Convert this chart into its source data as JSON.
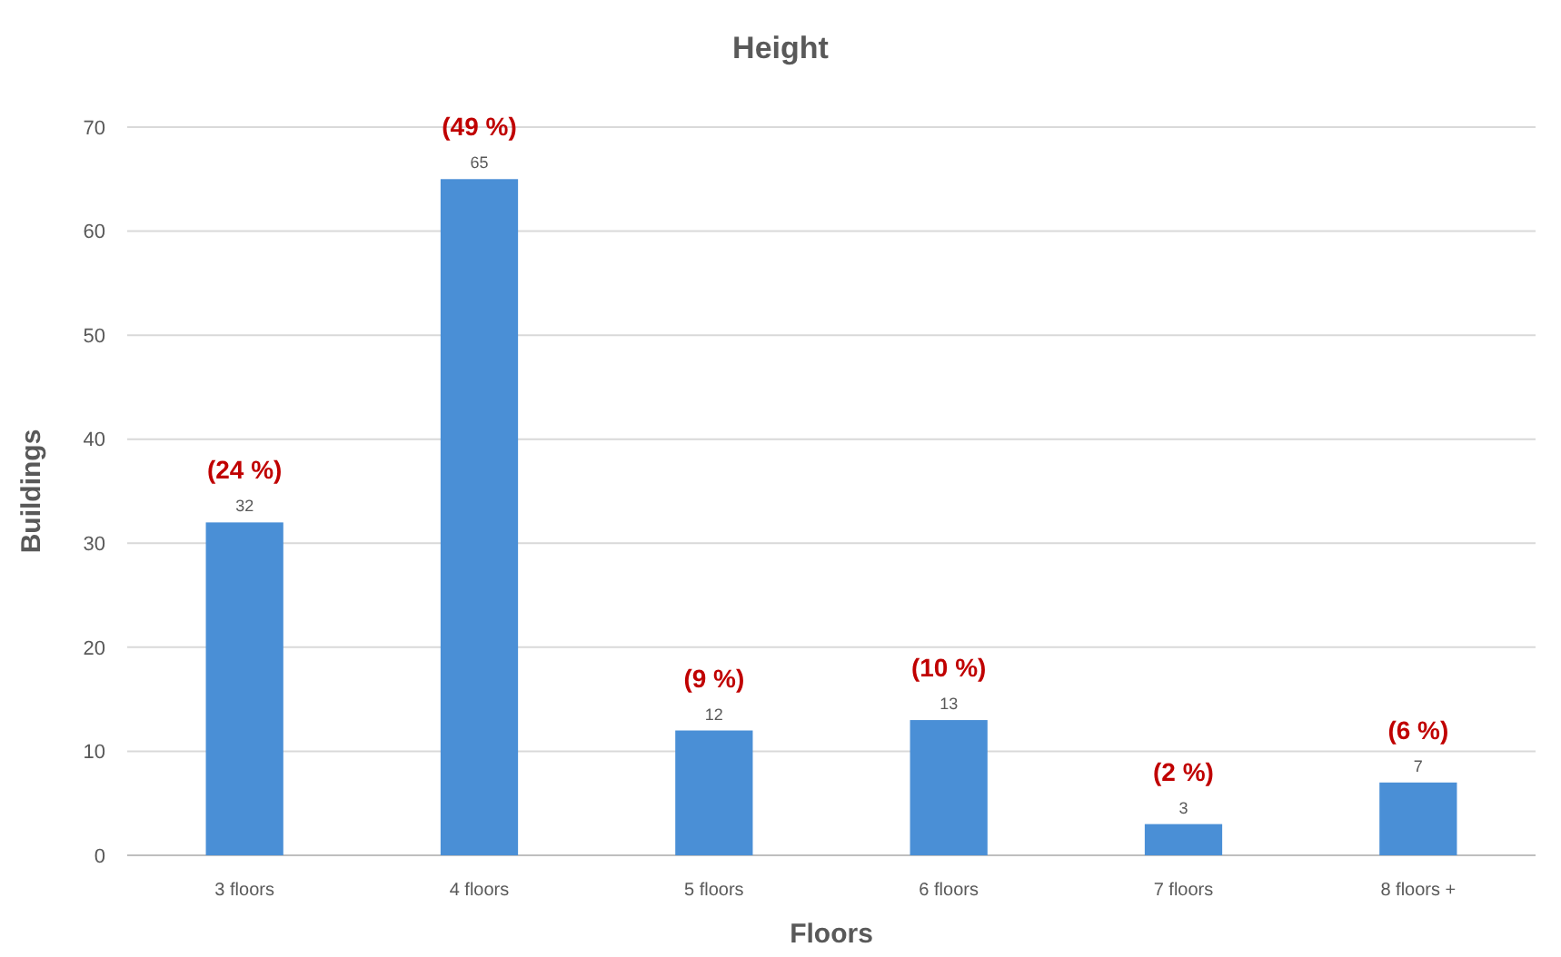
{
  "chart_data": {
    "type": "bar",
    "title": "Height",
    "xlabel": "Floors",
    "ylabel": "Buildings",
    "categories": [
      "3 floors",
      "4 floors",
      "5 floors",
      "6 floors",
      "7 floors",
      "8 floors +"
    ],
    "values": [
      32,
      65,
      12,
      13,
      3,
      7
    ],
    "color": "#4a8fd6",
    "ylim": [
      0,
      70
    ],
    "yticks": [
      0,
      10,
      20,
      30,
      40,
      50,
      60,
      70
    ],
    "grid": "y",
    "data_labels": true,
    "annotations": [
      {
        "text": "(24 %)",
        "x": "3 floors",
        "y": 32
      },
      {
        "text": "(49 %)",
        "x": "4 floors",
        "y": 65
      },
      {
        "text": "(9 %)",
        "x": "5 floors",
        "y": 12
      },
      {
        "text": "(10 %)",
        "x": "6 floors",
        "y": 13
      },
      {
        "text": "(2 %)",
        "x": "7 floors",
        "y": 3
      },
      {
        "text": "(6 %)",
        "x": "8 floors +",
        "y": 7
      }
    ]
  }
}
